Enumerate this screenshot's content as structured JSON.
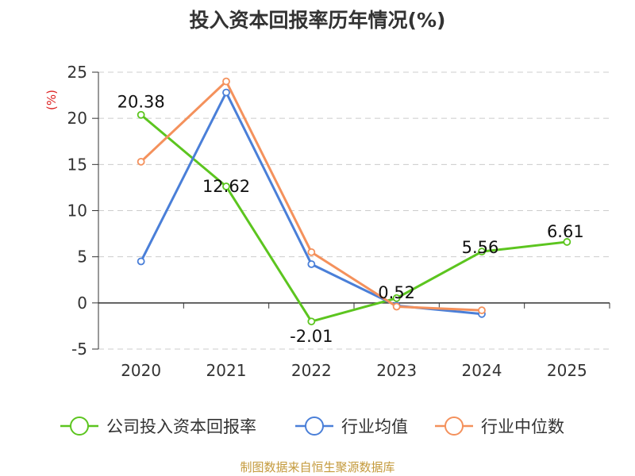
{
  "source_note": "制图数据来自恒生聚源数据库",
  "chart_data": {
    "type": "line",
    "title": "投入资本回报率历年情况(%)",
    "ylabel": "(%)",
    "categories": [
      "2020",
      "2021",
      "2022",
      "2023",
      "2024",
      "2025"
    ],
    "ylim": [
      -5,
      25
    ],
    "yticks": [
      "25",
      "20",
      "15",
      "10",
      "5",
      "0",
      "-5"
    ],
    "grid": true,
    "legend_position": "bottom",
    "series": [
      {
        "name": "公司投入资本回报率",
        "color": "#5cc51f",
        "values": [
          20.38,
          12.62,
          -2.01,
          0.52,
          5.56,
          6.61
        ],
        "labels": [
          "20.38",
          "12.62",
          "-2.01",
          "0.52",
          "5.56",
          "6.61"
        ]
      },
      {
        "name": "行业均值",
        "color": "#4a7fd8",
        "values": [
          4.5,
          22.8,
          4.2,
          -0.3,
          -1.2,
          null
        ]
      },
      {
        "name": "行业中位数",
        "color": "#f4915c",
        "values": [
          15.3,
          24.0,
          5.5,
          -0.4,
          -0.8,
          null
        ]
      }
    ]
  }
}
